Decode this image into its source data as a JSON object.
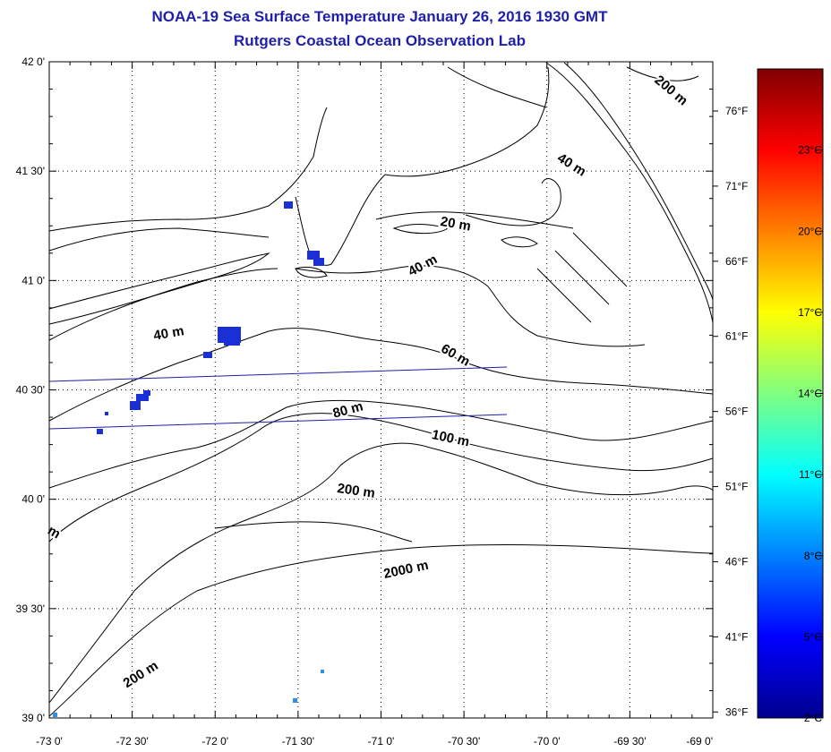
{
  "title": "NOAA-19 Sea Surface Temperature January 26, 2016 1930 GMT",
  "subtitle": "Rutgers Coastal Ocean Observation Lab",
  "map": {
    "lon_range": [
      -73.0,
      -69.0
    ],
    "lat_range": [
      39.0,
      42.0
    ],
    "grid": "dotted",
    "lat_ticks": [
      {
        "value": 42.0,
        "label": "42 0'"
      },
      {
        "value": 41.5,
        "label": "41 30'"
      },
      {
        "value": 41.0,
        "label": "41 0'"
      },
      {
        "value": 40.5,
        "label": "40 30'"
      },
      {
        "value": 40.0,
        "label": "40 0'"
      },
      {
        "value": 39.5,
        "label": "39 30'"
      },
      {
        "value": 39.0,
        "label": "39 0'"
      }
    ],
    "lon_ticks": [
      {
        "value": -73.0,
        "label": "-73 0'"
      },
      {
        "value": -72.5,
        "label": "-72 30'"
      },
      {
        "value": -72.0,
        "label": "-72 0'"
      },
      {
        "value": -71.5,
        "label": "-71 30'"
      },
      {
        "value": -71.0,
        "label": "-71 0'"
      },
      {
        "value": -70.5,
        "label": "-70 30'"
      },
      {
        "value": -70.0,
        "label": "-70 0'"
      },
      {
        "value": -69.5,
        "label": "-69 30'"
      },
      {
        "value": -69.0,
        "label": "-69 0'"
      }
    ],
    "contour_labels": [
      {
        "text": "200 m",
        "lon": -69.25,
        "lat": 41.87,
        "rotate": 40
      },
      {
        "text": "40 m",
        "lon": -69.85,
        "lat": 41.53,
        "rotate": 32
      },
      {
        "text": "20 m",
        "lon": -70.55,
        "lat": 41.26,
        "rotate": 10
      },
      {
        "text": "40 m",
        "lon": -70.75,
        "lat": 41.07,
        "rotate": -28
      },
      {
        "text": "40 m",
        "lon": -72.28,
        "lat": 40.76,
        "rotate": -10
      },
      {
        "text": "60 m",
        "lon": -70.55,
        "lat": 40.66,
        "rotate": 30
      },
      {
        "text": "80 m",
        "lon": -71.2,
        "lat": 40.41,
        "rotate": -15
      },
      {
        "text": "100 m",
        "lon": -70.58,
        "lat": 40.28,
        "rotate": 12
      },
      {
        "text": "200 m",
        "lon": -71.15,
        "lat": 40.04,
        "rotate": 8
      },
      {
        "text": "2000 m",
        "lon": -70.85,
        "lat": 39.68,
        "rotate": -12
      },
      {
        "text": "200 m",
        "lon": -72.45,
        "lat": 39.2,
        "rotate": -32
      },
      {
        "text": "m",
        "lon": -72.97,
        "lat": 39.85,
        "rotate": 30
      }
    ],
    "sst_patches_color": "#1a2fd6",
    "sst_patches_light_color": "#2f8fe0"
  },
  "colorbar": {
    "range_c": [
      2,
      26
    ],
    "celsius_labels": [
      {
        "value": 2,
        "label": "2°C"
      },
      {
        "value": 5,
        "label": "5°C"
      },
      {
        "value": 8,
        "label": "8°C"
      },
      {
        "value": 11,
        "label": "11°C"
      },
      {
        "value": 14,
        "label": "14°C"
      },
      {
        "value": 17,
        "label": "17°C"
      },
      {
        "value": 20,
        "label": "20°C"
      },
      {
        "value": 23,
        "label": "23°C"
      }
    ],
    "fahrenheit_labels": [
      {
        "value": 36,
        "label": "36°F"
      },
      {
        "value": 41,
        "label": "41°F"
      },
      {
        "value": 46,
        "label": "46°F"
      },
      {
        "value": 51,
        "label": "51°F"
      },
      {
        "value": 56,
        "label": "56°F"
      },
      {
        "value": 61,
        "label": "61°F"
      },
      {
        "value": 66,
        "label": "66°F"
      },
      {
        "value": 71,
        "label": "71°F"
      },
      {
        "value": 76,
        "label": "76°F"
      }
    ],
    "colors": [
      "#00008f",
      "#0000ff",
      "#0080ff",
      "#00ffff",
      "#80ff80",
      "#ffff00",
      "#ff8000",
      "#ff0000",
      "#800000"
    ]
  }
}
